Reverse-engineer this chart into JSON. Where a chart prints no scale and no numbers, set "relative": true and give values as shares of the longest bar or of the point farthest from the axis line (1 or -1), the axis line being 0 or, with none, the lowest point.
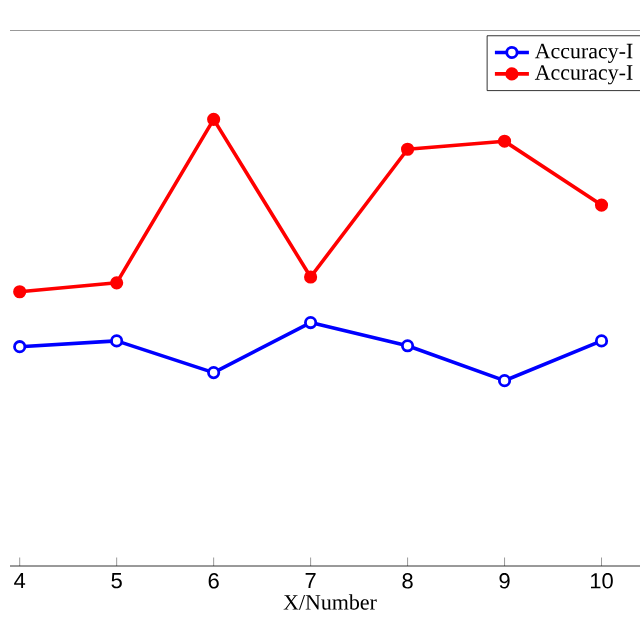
{
  "chart_data": {
    "type": "line",
    "xlabel": "X/Number",
    "relative": true,
    "x": [
      4,
      5,
      6,
      7,
      8,
      9,
      10
    ],
    "xlim": [
      3.9,
      10.5
    ],
    "xticks": [
      4,
      5,
      6,
      7,
      8,
      9,
      10
    ],
    "legend": "top right",
    "marker": "circle",
    "line_style": "solid",
    "series": [
      {
        "name": "Accuracy-I",
        "color": "#0000ff",
        "values": [
          0.491,
          0.504,
          0.433,
          0.545,
          0.493,
          0.415,
          0.504
        ]
      },
      {
        "name": "Accuracy-I",
        "color": "#ff0000",
        "values": [
          0.614,
          0.634,
          1,
          0.647,
          0.933,
          0.951,
          0.808
        ]
      }
    ]
  }
}
